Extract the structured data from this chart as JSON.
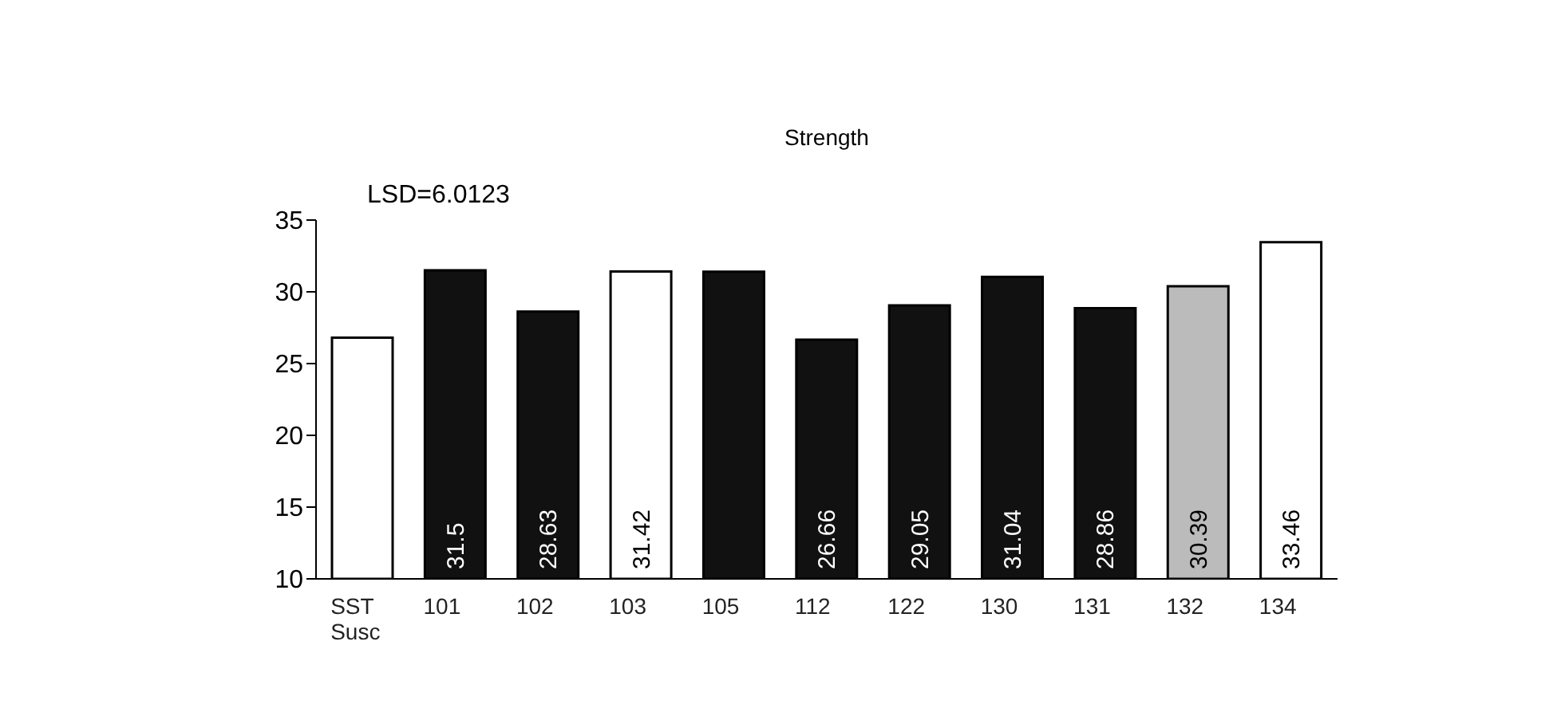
{
  "chart_data": {
    "type": "bar",
    "title": "Strength",
    "annotations": [
      "LSD=6.0123"
    ],
    "categories": [
      "SST Susc",
      "101",
      "102",
      "103",
      "105",
      "112",
      "122",
      "130",
      "131",
      "132",
      "134"
    ],
    "values": [
      26.8,
      31.5,
      28.63,
      31.42,
      31.4,
      26.66,
      29.05,
      31.04,
      28.86,
      30.39,
      33.46
    ],
    "value_labels": [
      null,
      "31.5",
      "28.63",
      "31.42",
      null,
      "26.66",
      "29.05",
      "31.04",
      "28.86",
      "30.39",
      "33.46"
    ],
    "colors": [
      "#ffffff",
      "#111111",
      "#111111",
      "#ffffff",
      "#111111",
      "#111111",
      "#111111",
      "#111111",
      "#111111",
      "#bbbbbb",
      "#ffffff"
    ],
    "ylim": [
      10,
      35
    ],
    "yticks": [
      10,
      15,
      20,
      25,
      30,
      35
    ],
    "grid": false,
    "legend": false
  }
}
